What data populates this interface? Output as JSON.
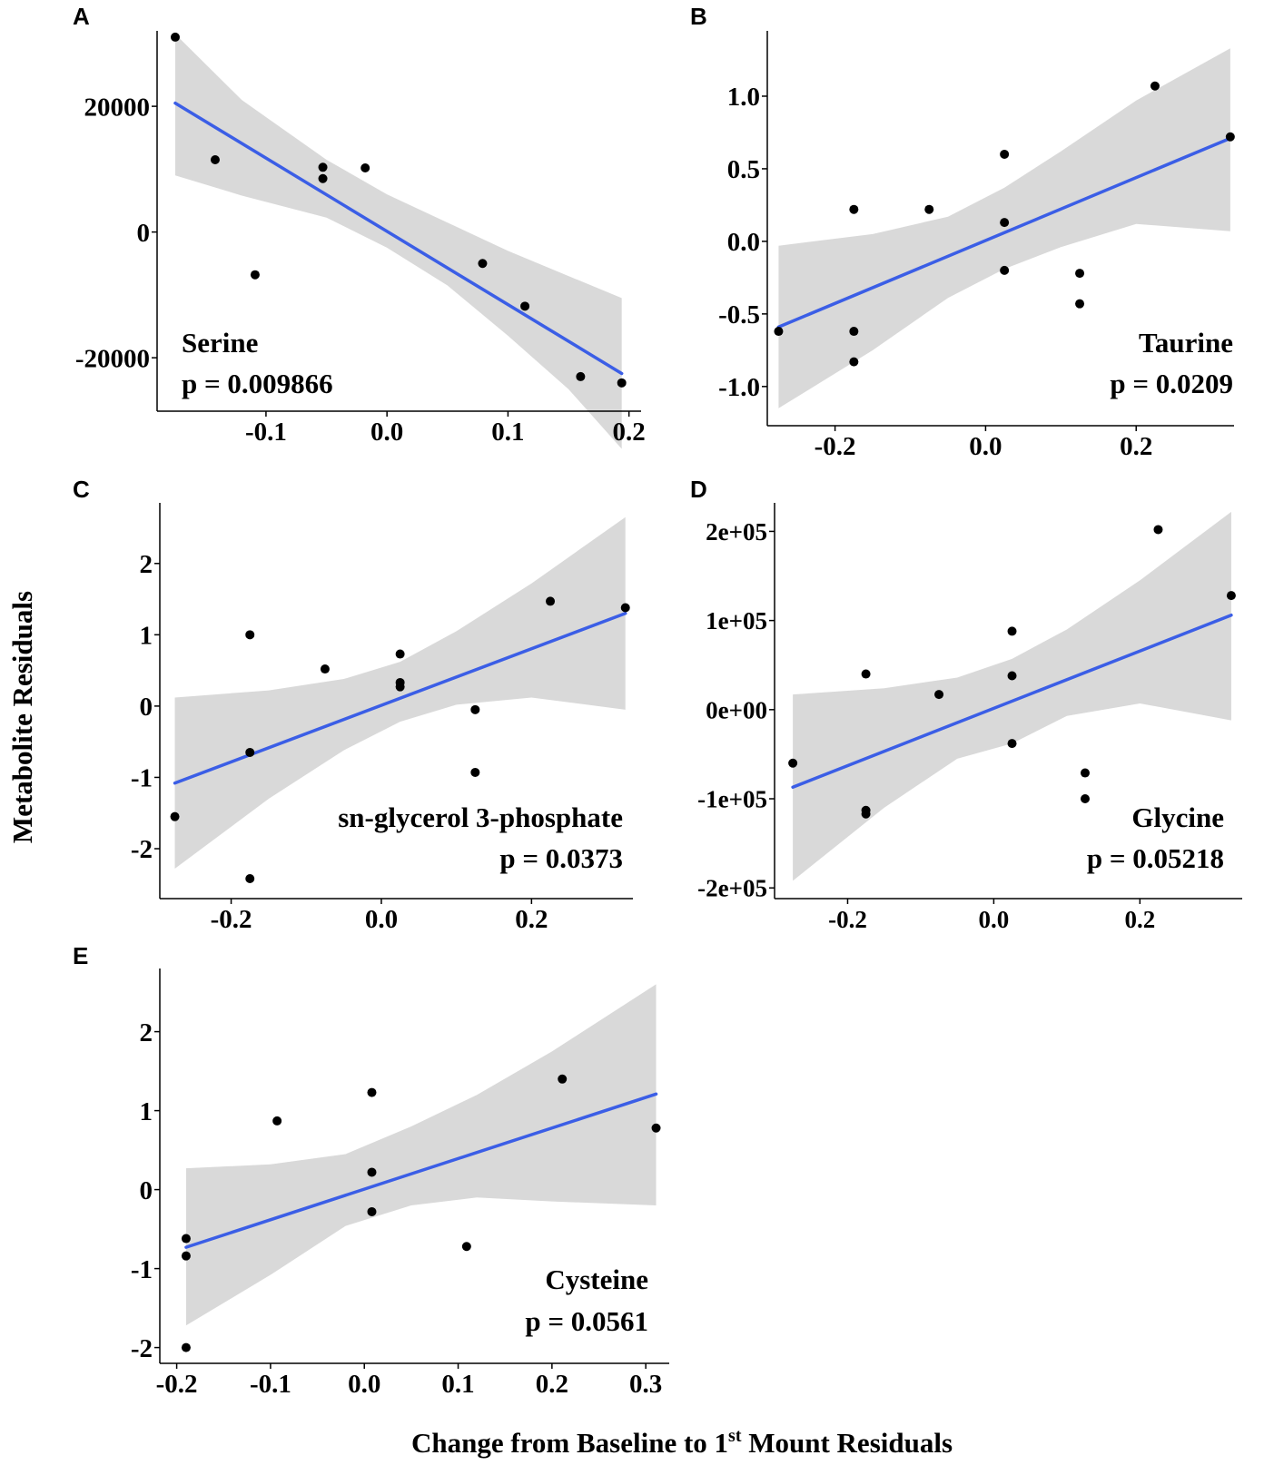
{
  "figure": {
    "ylabel": "Metabolite Residuals",
    "xlabel_main": "Change from Baseline to 1",
    "xlabel_sup": "st",
    "xlabel_tail": " Mount Residuals"
  },
  "colors": {
    "line": "#3b5ee6",
    "band": "#d9d9d9",
    "point": "#000000",
    "axis": "#000000"
  },
  "chart_data": [
    {
      "panel": "A",
      "type": "scatter",
      "title": "Serine",
      "pvalue": "p = 0.009866",
      "label_position": "bottom-left",
      "xlim": [
        -0.19,
        0.21
      ],
      "ylim": [
        -28500,
        32000
      ],
      "xticks": [
        -0.1,
        0.0,
        0.1,
        0.2
      ],
      "xtick_labels": [
        "-0.1",
        "0.0",
        "0.1",
        "0.2"
      ],
      "yticks": [
        -20000,
        0,
        20000
      ],
      "ytick_labels": [
        "-20000",
        "0",
        "20000"
      ],
      "points": [
        [
          -0.175,
          31000
        ],
        [
          -0.142,
          11500
        ],
        [
          -0.109,
          -6800
        ],
        [
          -0.053,
          10300
        ],
        [
          -0.053,
          8500
        ],
        [
          -0.018,
          10200
        ],
        [
          0.079,
          -5000
        ],
        [
          0.114,
          -11800
        ],
        [
          0.16,
          -23000
        ],
        [
          0.194,
          -24000
        ]
      ],
      "fit": [
        [
          -0.175,
          20500
        ],
        [
          0.194,
          -22500
        ]
      ],
      "band_upper": [
        [
          -0.175,
          31500
        ],
        [
          -0.12,
          21000
        ],
        [
          -0.05,
          11500
        ],
        [
          0.0,
          6000
        ],
        [
          0.05,
          1500
        ],
        [
          0.1,
          -3000
        ],
        [
          0.15,
          -7000
        ],
        [
          0.194,
          -10500
        ]
      ],
      "band_lower": [
        [
          -0.175,
          9000
        ],
        [
          -0.12,
          5800
        ],
        [
          -0.05,
          2300
        ],
        [
          0.0,
          -2500
        ],
        [
          0.05,
          -8500
        ],
        [
          0.1,
          -16500
        ],
        [
          0.15,
          -25000
        ],
        [
          0.194,
          -34500
        ]
      ]
    },
    {
      "panel": "B",
      "type": "scatter",
      "title": "Taurine",
      "pvalue": "p = 0.0209",
      "label_position": "bottom-right",
      "xlim": [
        -0.29,
        0.33
      ],
      "ylim": [
        -1.27,
        1.45
      ],
      "xticks": [
        -0.2,
        0.0,
        0.2
      ],
      "xtick_labels": [
        "-0.2",
        "0.0",
        "0.2"
      ],
      "yticks": [
        -1.0,
        -0.5,
        0.0,
        0.5,
        1.0
      ],
      "ytick_labels": [
        "-1.0",
        "-0.5",
        "0.0",
        "0.5",
        "1.0"
      ],
      "points": [
        [
          -0.275,
          -0.62
        ],
        [
          -0.175,
          0.22
        ],
        [
          -0.175,
          -0.62
        ],
        [
          -0.175,
          -0.83
        ],
        [
          -0.075,
          0.22
        ],
        [
          0.025,
          0.6
        ],
        [
          0.025,
          0.13
        ],
        [
          0.025,
          -0.2
        ],
        [
          0.125,
          -0.22
        ],
        [
          0.125,
          -0.43
        ],
        [
          0.225,
          1.07
        ],
        [
          0.325,
          0.72
        ]
      ],
      "fit": [
        [
          -0.275,
          -0.59
        ],
        [
          0.325,
          0.71
        ]
      ],
      "band_upper": [
        [
          -0.275,
          -0.03
        ],
        [
          -0.15,
          0.05
        ],
        [
          -0.05,
          0.17
        ],
        [
          0.025,
          0.37
        ],
        [
          0.1,
          0.62
        ],
        [
          0.2,
          0.97
        ],
        [
          0.325,
          1.33
        ]
      ],
      "band_lower": [
        [
          -0.275,
          -1.15
        ],
        [
          -0.15,
          -0.75
        ],
        [
          -0.05,
          -0.39
        ],
        [
          0.025,
          -0.19
        ],
        [
          0.1,
          -0.04
        ],
        [
          0.2,
          0.12
        ],
        [
          0.325,
          0.07
        ]
      ]
    },
    {
      "panel": "C",
      "type": "scatter",
      "title": "sn-glycerol 3-phosphate",
      "pvalue": "p = 0.0373",
      "label_position": "bottom-right",
      "xlim": [
        -0.295,
        0.335
      ],
      "ylim": [
        -2.7,
        2.85
      ],
      "xticks": [
        -0.2,
        0.0,
        0.2
      ],
      "xtick_labels": [
        "-0.2",
        "0.0",
        "0.2"
      ],
      "yticks": [
        -2,
        -1,
        0,
        1,
        2
      ],
      "ytick_labels": [
        "-2",
        "-1",
        "0",
        "1",
        "2"
      ],
      "points": [
        [
          -0.275,
          -1.55
        ],
        [
          -0.175,
          1.0
        ],
        [
          -0.175,
          -0.65
        ],
        [
          -0.175,
          -2.42
        ],
        [
          -0.075,
          0.52
        ],
        [
          0.025,
          0.73
        ],
        [
          0.025,
          0.33
        ],
        [
          0.025,
          0.27
        ],
        [
          0.125,
          -0.05
        ],
        [
          0.125,
          -0.93
        ],
        [
          0.225,
          1.47
        ],
        [
          0.325,
          1.38
        ]
      ],
      "fit": [
        [
          -0.275,
          -1.08
        ],
        [
          0.325,
          1.3
        ]
      ],
      "band_upper": [
        [
          -0.275,
          0.12
        ],
        [
          -0.15,
          0.22
        ],
        [
          -0.05,
          0.38
        ],
        [
          0.025,
          0.62
        ],
        [
          0.1,
          1.05
        ],
        [
          0.2,
          1.72
        ],
        [
          0.325,
          2.65
        ]
      ],
      "band_lower": [
        [
          -0.275,
          -2.28
        ],
        [
          -0.15,
          -1.3
        ],
        [
          -0.05,
          -0.62
        ],
        [
          0.025,
          -0.22
        ],
        [
          0.1,
          0.02
        ],
        [
          0.2,
          0.12
        ],
        [
          0.325,
          -0.05
        ]
      ]
    },
    {
      "panel": "D",
      "type": "scatter",
      "title": "Glycine",
      "pvalue": "p = 0.05218",
      "label_position": "bottom-right",
      "xlim": [
        -0.3,
        0.34
      ],
      "ylim": [
        -212000,
        232000
      ],
      "xticks": [
        -0.2,
        0.0,
        0.2
      ],
      "xtick_labels": [
        "-0.2",
        "0.0",
        "0.2"
      ],
      "yticks": [
        -200000,
        -100000,
        0,
        100000,
        200000
      ],
      "ytick_labels": [
        "-2e+05",
        "-1e+05",
        "0e+00",
        "1e+05",
        "2e+05"
      ],
      "points": [
        [
          -0.275,
          -60000
        ],
        [
          -0.175,
          40000
        ],
        [
          -0.175,
          -113000
        ],
        [
          -0.175,
          -117000
        ],
        [
          -0.075,
          17000
        ],
        [
          0.025,
          88000
        ],
        [
          0.025,
          38000
        ],
        [
          0.025,
          -38000
        ],
        [
          0.125,
          -71000
        ],
        [
          0.125,
          -100000
        ],
        [
          0.225,
          202000
        ],
        [
          0.325,
          128000
        ]
      ],
      "fit": [
        [
          -0.275,
          -87000
        ],
        [
          0.325,
          106000
        ]
      ],
      "band_upper": [
        [
          -0.275,
          17000
        ],
        [
          -0.15,
          24000
        ],
        [
          -0.05,
          36000
        ],
        [
          0.025,
          57000
        ],
        [
          0.1,
          90000
        ],
        [
          0.2,
          145000
        ],
        [
          0.325,
          222000
        ]
      ],
      "band_lower": [
        [
          -0.275,
          -192000
        ],
        [
          -0.15,
          -110000
        ],
        [
          -0.05,
          -55000
        ],
        [
          0.025,
          -38000
        ],
        [
          0.1,
          -7000
        ],
        [
          0.2,
          7000
        ],
        [
          0.325,
          -12000
        ]
      ]
    },
    {
      "panel": "E",
      "type": "scatter",
      "title": "Cysteine",
      "pvalue": "p = 0.0561",
      "label_position": "bottom-right",
      "xlim": [
        -0.218,
        0.325
      ],
      "ylim": [
        -2.2,
        2.8
      ],
      "xticks": [
        -0.2,
        -0.1,
        0.0,
        0.1,
        0.2,
        0.3
      ],
      "xtick_labels": [
        "-0.2",
        "-0.1",
        "0.0",
        "0.1",
        "0.2",
        "0.3"
      ],
      "yticks": [
        -2,
        -1,
        0,
        1,
        2
      ],
      "ytick_labels": [
        "-2",
        "-1",
        "0",
        "1",
        "2"
      ],
      "points": [
        [
          -0.19,
          -0.62
        ],
        [
          -0.19,
          -0.84
        ],
        [
          -0.19,
          -2.0
        ],
        [
          -0.093,
          0.87
        ],
        [
          0.008,
          1.23
        ],
        [
          0.008,
          0.22
        ],
        [
          0.008,
          -0.28
        ],
        [
          0.109,
          -0.72
        ],
        [
          0.211,
          1.4
        ],
        [
          0.311,
          0.78
        ]
      ],
      "fit": [
        [
          -0.19,
          -0.73
        ],
        [
          0.311,
          1.21
        ]
      ],
      "band_upper": [
        [
          -0.19,
          0.27
        ],
        [
          -0.1,
          0.32
        ],
        [
          -0.02,
          0.45
        ],
        [
          0.05,
          0.8
        ],
        [
          0.12,
          1.2
        ],
        [
          0.2,
          1.75
        ],
        [
          0.311,
          2.6
        ]
      ],
      "band_lower": [
        [
          -0.19,
          -1.72
        ],
        [
          -0.1,
          -1.08
        ],
        [
          -0.02,
          -0.46
        ],
        [
          0.05,
          -0.2
        ],
        [
          0.12,
          -0.1
        ],
        [
          0.2,
          -0.15
        ],
        [
          0.311,
          -0.2
        ]
      ]
    }
  ]
}
